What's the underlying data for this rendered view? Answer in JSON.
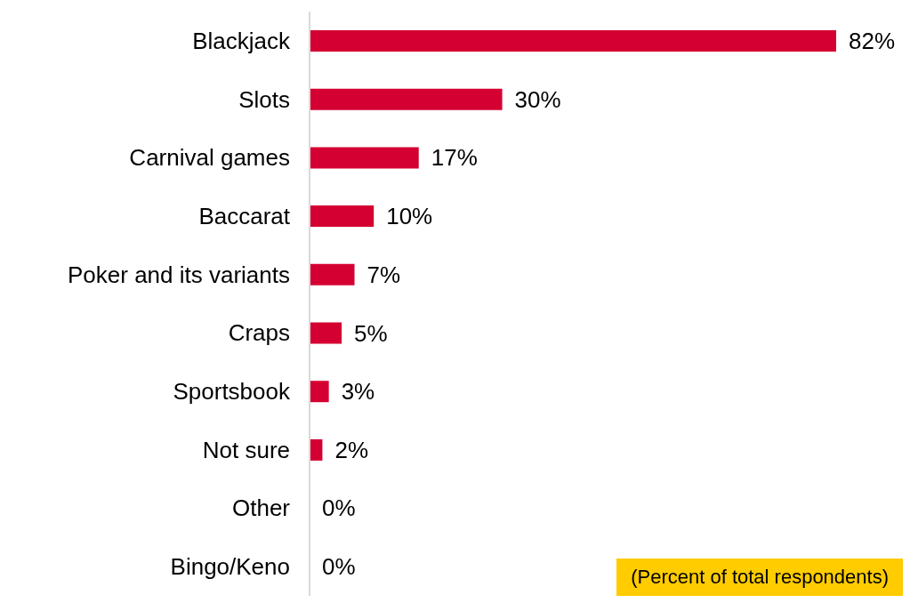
{
  "chart_data": {
    "type": "bar",
    "orientation": "horizontal",
    "categories": [
      "Blackjack",
      "Slots",
      "Carnival games",
      "Baccarat",
      "Poker and its variants",
      "Craps",
      "Sportsbook",
      "Not sure",
      "Other",
      "Bingo/Keno"
    ],
    "values": [
      82,
      30,
      17,
      10,
      7,
      5,
      3,
      2,
      0,
      0
    ],
    "value_labels": [
      "82%",
      "30%",
      "17%",
      "10%",
      "7%",
      "5%",
      "3%",
      "2%",
      "0%",
      "0%"
    ],
    "color": "#d50032",
    "grid": false,
    "legend": false,
    "annotations": [
      "(Percent of total respondents)"
    ]
  }
}
